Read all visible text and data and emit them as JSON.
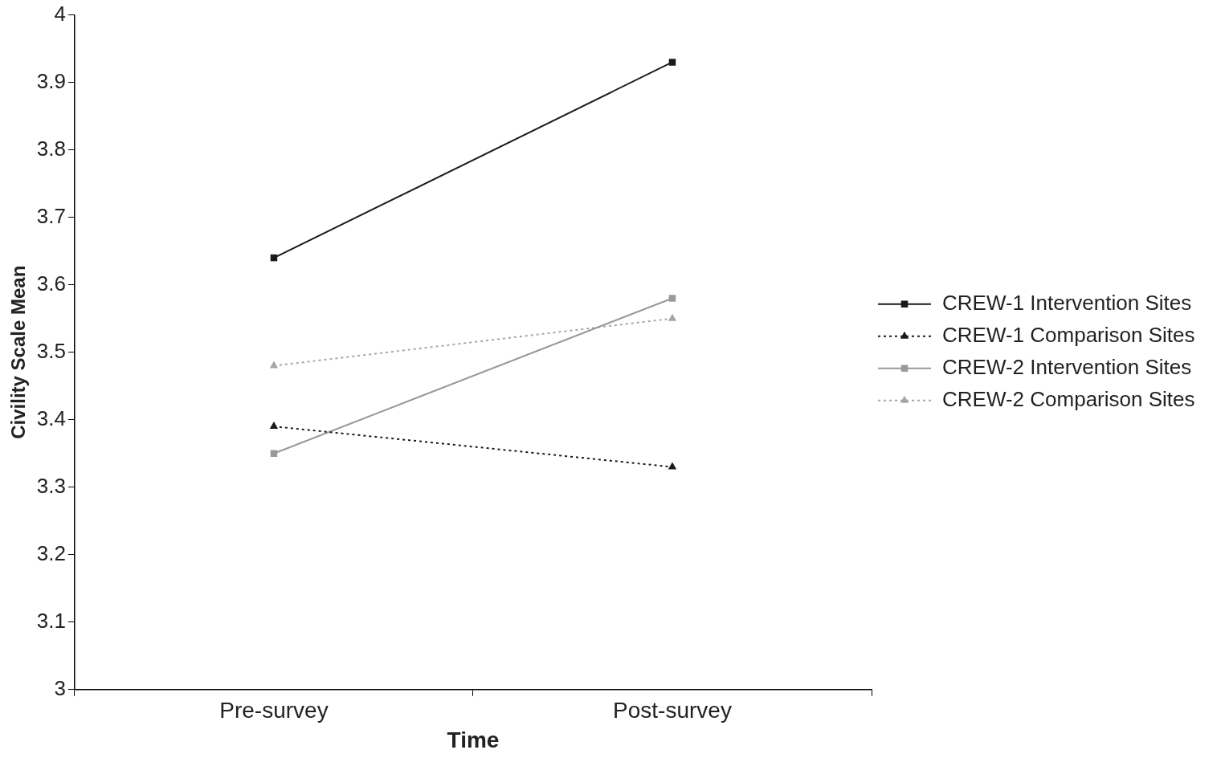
{
  "chart_data": {
    "type": "line",
    "xlabel": "Time",
    "ylabel": "Civility Scale Mean",
    "categories": [
      "Pre-survey",
      "Post-survey"
    ],
    "series": [
      {
        "name": "CREW-1 Intervention Sites",
        "color": "#1a1a1a",
        "values": [
          3.64,
          3.93
        ],
        "marker": "square",
        "line_style": "solid"
      },
      {
        "name": "CREW-1 Comparison Sites",
        "color": "#1a1a1a",
        "values": [
          3.39,
          3.33
        ],
        "marker": "triangle",
        "line_style": "dotted"
      },
      {
        "name": "CREW-2 Intervention Sites",
        "color": "#999999",
        "values": [
          3.35,
          3.58
        ],
        "marker": "square",
        "line_style": "solid"
      },
      {
        "name": "CREW-2 Comparison Sites",
        "color": "#a6a6a6",
        "values": [
          3.48,
          3.55
        ],
        "marker": "triangle",
        "line_style": "dotted"
      }
    ],
    "ylim": [
      3,
      4
    ],
    "yticks": [
      3,
      3.1,
      3.2,
      3.3,
      3.4,
      3.5,
      3.6,
      3.7,
      3.8,
      3.9,
      4
    ],
    "grid": false,
    "legend": "right"
  }
}
